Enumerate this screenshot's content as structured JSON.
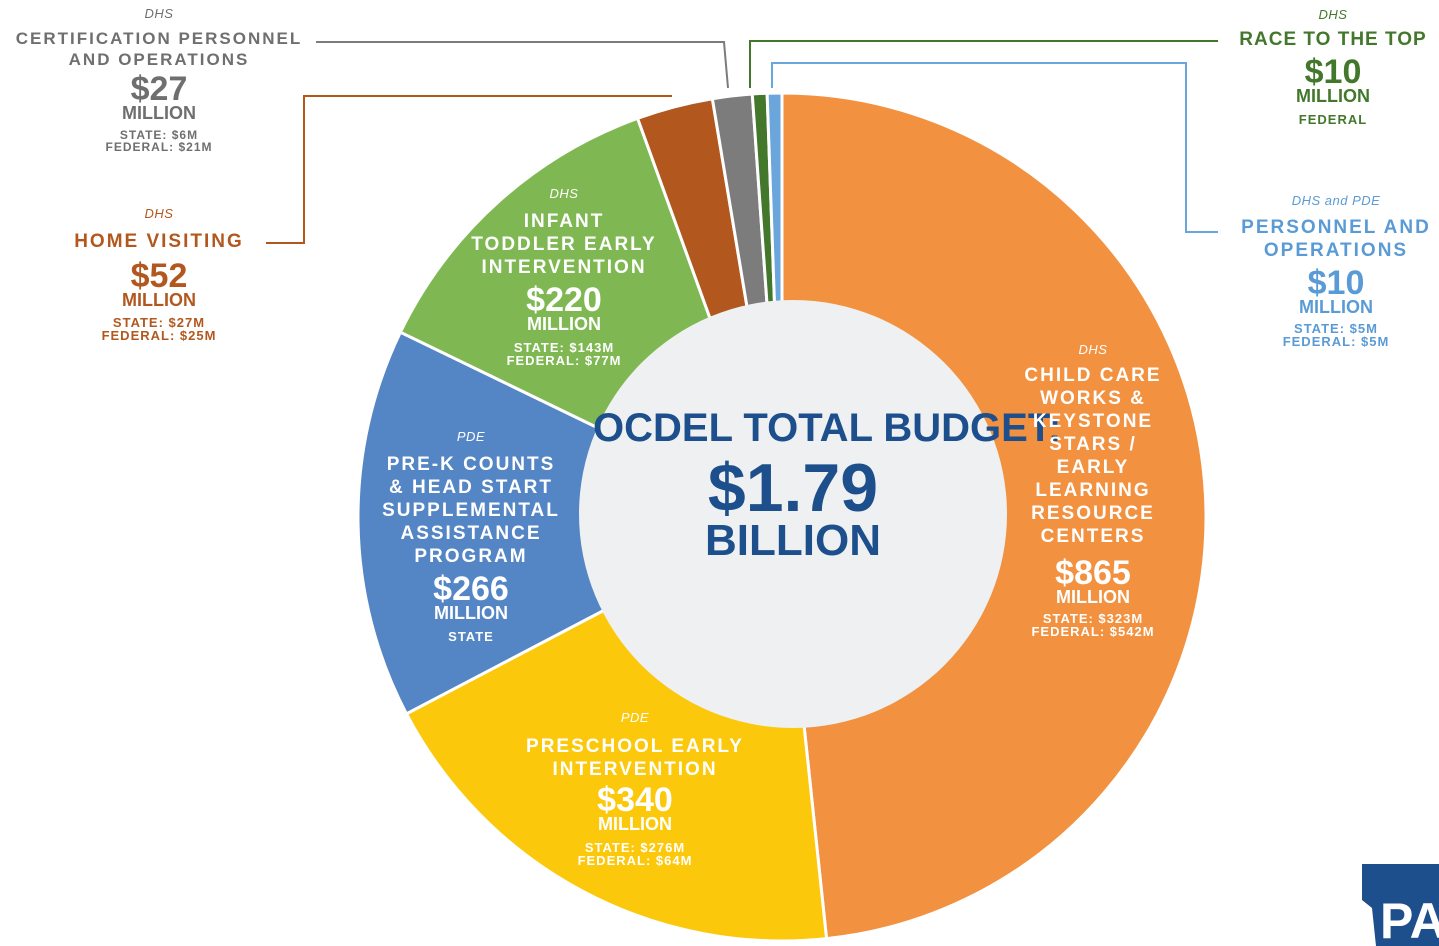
{
  "chart_data": {
    "type": "pie",
    "title": "OCDEL TOTAL BUDGET:",
    "total": "$1.79",
    "total_unit": "BILLION",
    "slices": [
      {
        "agency": "DHS",
        "name": [
          "CHILD CARE",
          "WORKS &",
          "KEYSTONE",
          "STARS /",
          "EARLY",
          "LEARNING",
          "RESOURCE",
          "CENTERS"
        ],
        "amount_label": "$865",
        "unit": "MILLION",
        "split": [
          "STATE: $323M",
          "FEDERAL: $542M"
        ],
        "value": 865,
        "color": "#f29140"
      },
      {
        "agency": "PDE",
        "name": [
          "PRESCHOOL EARLY",
          "INTERVENTION"
        ],
        "amount_label": "$340",
        "unit": "MILLION",
        "split": [
          "STATE: $276M",
          "FEDERAL: $64M"
        ],
        "value": 340,
        "color": "#fcc80c"
      },
      {
        "agency": "PDE",
        "name": [
          "PRE-K COUNTS",
          "& HEAD START",
          "SUPPLEMENTAL",
          "ASSISTANCE",
          "PROGRAM"
        ],
        "amount_label": "$266",
        "unit": "MILLION",
        "split": [
          "STATE"
        ],
        "value": 266,
        "color": "#5485c5"
      },
      {
        "agency": "DHS",
        "name": [
          "INFANT",
          "TODDLER EARLY",
          "INTERVENTION"
        ],
        "amount_label": "$220",
        "unit": "MILLION",
        "split": [
          "STATE: $143M",
          "FEDERAL: $77M"
        ],
        "value": 220,
        "color": "#7fb853"
      },
      {
        "agency": "DHS",
        "name": [
          "HOME VISITING"
        ],
        "amount_label": "$52",
        "unit": "MILLION",
        "split": [
          "STATE: $27M",
          "FEDERAL: $25M"
        ],
        "value": 52,
        "color": "#b2581f"
      },
      {
        "agency": "DHS",
        "name": [
          "CERTIFICATION PERSONNEL",
          "AND OPERATIONS"
        ],
        "amount_label": "$27",
        "unit": "MILLION",
        "split": [
          "STATE: $6M",
          "FEDERAL: $21M"
        ],
        "value": 27,
        "color": "#7c7c7c"
      },
      {
        "agency": "DHS",
        "name": [
          "RACE TO THE TOP"
        ],
        "amount_label": "$10",
        "unit": "MILLION",
        "split": [
          "FEDERAL"
        ],
        "value": 10,
        "color": "#43782c"
      },
      {
        "agency": "DHS and PDE",
        "name": [
          "PERSONNEL AND",
          "OPERATIONS"
        ],
        "amount_label": "$10",
        "unit": "MILLION",
        "split": [
          "STATE: $5M",
          "FEDERAL: $5M"
        ],
        "value": 10,
        "color": "#6aa6dc"
      }
    ]
  },
  "logo": {
    "text": "PA",
    "color": "#1d4f8c"
  }
}
